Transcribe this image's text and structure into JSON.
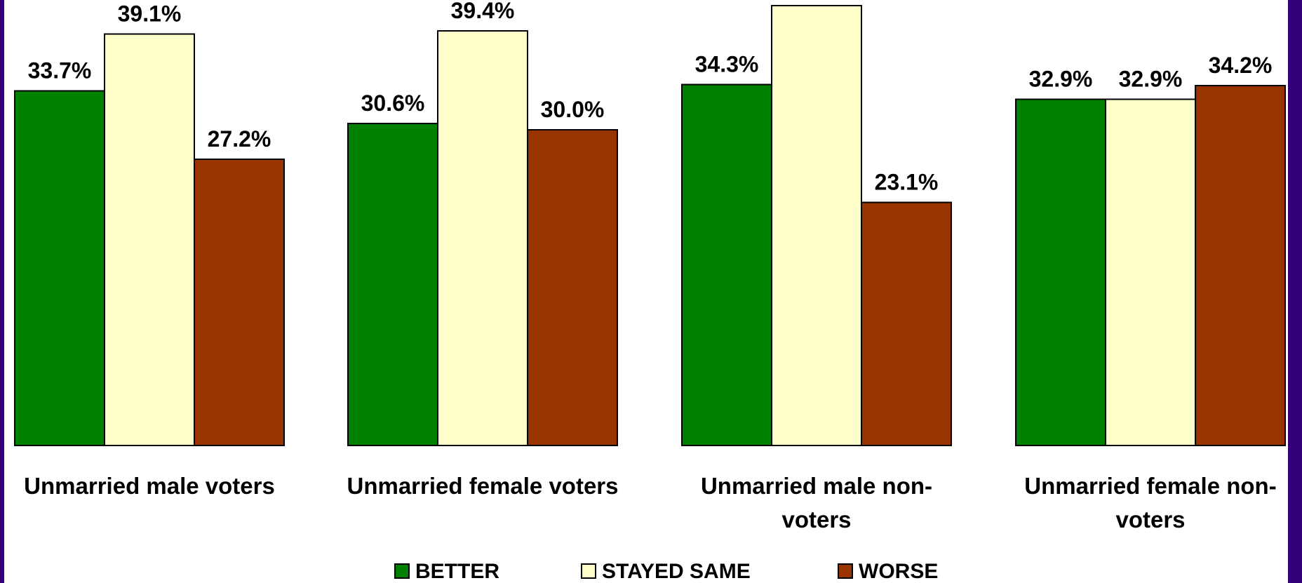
{
  "colors": {
    "border": "#33007a",
    "better": "#008000",
    "stayed_same": "#ffffcc",
    "worse": "#993300",
    "outline": "#000000"
  },
  "chart_data": {
    "type": "bar",
    "title": "",
    "xlabel": "",
    "ylabel": "",
    "grid": false,
    "legend": "bottom",
    "categories": [
      [
        "Unmarried male voters"
      ],
      [
        "Unmarried female voters"
      ],
      [
        "Unmarried male non-",
        "voters"
      ],
      [
        "Unmarried female non-",
        "voters"
      ]
    ],
    "series": [
      {
        "name": "BETTER",
        "values": [
          33.7,
          30.6,
          34.3,
          32.9
        ],
        "labels": [
          "33.7%",
          "30.6%",
          "34.3%",
          "32.9%"
        ]
      },
      {
        "name": "STAYED SAME",
        "values": [
          39.1,
          39.4,
          41.8,
          32.9
        ],
        "labels": [
          "39.1%",
          "39.4%",
          "",
          "32.9%"
        ]
      },
      {
        "name": "WORSE",
        "values": [
          27.2,
          30.0,
          23.1,
          34.2
        ],
        "labels": [
          "27.2%",
          "30.0%",
          "23.1%",
          "34.2%"
        ]
      }
    ]
  }
}
